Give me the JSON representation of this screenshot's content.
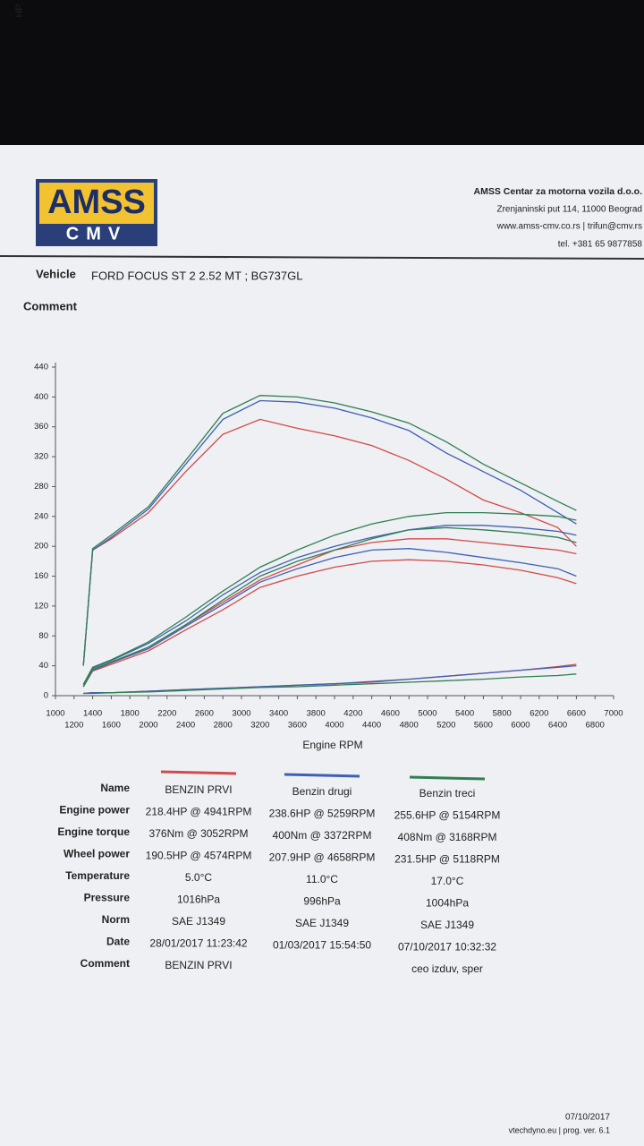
{
  "header": {
    "logo_top": "AMSS",
    "logo_bottom": "CMV",
    "company": "AMSS Centar za motorna vozila d.o.o.",
    "address": "Zrenjaninski put 114, 11000 Beograd",
    "web": "www.amss-cmv.co.rs  | trifun@cmv.rs",
    "phone": "tel. +381 65 9877858"
  },
  "vehicle": {
    "label": "Vehicle",
    "value": "FORD FOCUS ST 2 2.52 MT ; BG737GL"
  },
  "comment": {
    "label": "Comment"
  },
  "chart_data": {
    "type": "line",
    "ylabel": "HP, Nm",
    "xlabel": "Engine RPM",
    "xlim": [
      1000,
      7000
    ],
    "ylim": [
      0,
      440
    ],
    "xticks": [
      1000,
      1200,
      1400,
      1600,
      1800,
      2000,
      2200,
      2400,
      2600,
      2800,
      3000,
      3200,
      3400,
      3600,
      3800,
      4000,
      4200,
      4400,
      4600,
      4800,
      5000,
      5200,
      5400,
      5600,
      5800,
      6000,
      6200,
      6400,
      6600,
      6800,
      7000
    ],
    "yticks": [
      0,
      40,
      80,
      120,
      160,
      200,
      240,
      280,
      320,
      360,
      400,
      440
    ],
    "x": [
      1300,
      1400,
      1600,
      2000,
      2400,
      2800,
      3200,
      3600,
      4000,
      4400,
      4800,
      5200,
      5600,
      6000,
      6400,
      6600
    ],
    "series": [
      {
        "color": "#d24a4a",
        "values": [
          40,
          195,
          210,
          245,
          300,
          350,
          370,
          358,
          348,
          335,
          315,
          290,
          262,
          245,
          225,
          200
        ]
      },
      {
        "color": "#3f5fb5",
        "values": [
          40,
          195,
          212,
          250,
          310,
          370,
          395,
          393,
          385,
          372,
          355,
          325,
          300,
          275,
          245,
          230
        ]
      },
      {
        "color": "#2f7f52",
        "values": [
          40,
          197,
          215,
          253,
          315,
          378,
          402,
          400,
          392,
          380,
          365,
          340,
          310,
          285,
          260,
          248
        ]
      },
      {
        "color": "#d24a4a",
        "values": [
          15,
          35,
          45,
          65,
          95,
          125,
          155,
          175,
          195,
          205,
          210,
          210,
          205,
          200,
          195,
          190
        ]
      },
      {
        "color": "#3f5fb5",
        "values": [
          15,
          37,
          47,
          70,
          100,
          135,
          165,
          185,
          200,
          212,
          222,
          228,
          228,
          225,
          220,
          215
        ]
      },
      {
        "color": "#2f7f52",
        "values": [
          15,
          38,
          48,
          72,
          105,
          140,
          172,
          195,
          215,
          230,
          240,
          245,
          245,
          243,
          240,
          235
        ]
      },
      {
        "color": "#d24a4a",
        "values": [
          12,
          33,
          42,
          60,
          88,
          115,
          145,
          160,
          172,
          180,
          182,
          180,
          175,
          168,
          158,
          150
        ]
      },
      {
        "color": "#3f5fb5",
        "values": [
          12,
          34,
          44,
          63,
          93,
          122,
          152,
          170,
          185,
          195,
          197,
          192,
          185,
          178,
          170,
          160
        ]
      },
      {
        "color": "#2f7f52",
        "values": [
          12,
          35,
          45,
          65,
          95,
          128,
          160,
          180,
          195,
          210,
          222,
          225,
          222,
          218,
          212,
          205
        ]
      },
      {
        "color": "#d24a4a",
        "values": [
          3,
          4,
          4,
          6,
          8,
          10,
          12,
          14,
          16,
          18,
          22,
          26,
          30,
          34,
          39,
          42
        ]
      },
      {
        "color": "#3f5fb5",
        "values": [
          3,
          4,
          4,
          6,
          8,
          10,
          12,
          14,
          16,
          19,
          22,
          26,
          30,
          34,
          38,
          40
        ]
      },
      {
        "color": "#2f7f52",
        "values": [
          3,
          3,
          4,
          5,
          7,
          9,
          11,
          12,
          14,
          16,
          18,
          20,
          22,
          25,
          27,
          29
        ]
      }
    ]
  },
  "table": {
    "rows": [
      {
        "label": "Name",
        "values": [
          "BENZIN PRVI",
          "Benzin drugi",
          "Benzin treci"
        ]
      },
      {
        "label": "Engine power",
        "values": [
          "218.4HP @  4941RPM",
          "238.6HP @  5259RPM",
          "255.6HP @  5154RPM"
        ]
      },
      {
        "label": "Engine torque",
        "values": [
          "376Nm @ 3052RPM",
          "400Nm @ 3372RPM",
          "408Nm @ 3168RPM"
        ]
      },
      {
        "label": "Wheel power",
        "values": [
          "190.5HP @  4574RPM",
          "207.9HP @  4658RPM",
          "231.5HP @  5118RPM"
        ]
      },
      {
        "label": "Temperature",
        "values": [
          "5.0°C",
          "11.0°C",
          "17.0°C"
        ]
      },
      {
        "label": "Pressure",
        "values": [
          "1016hPa",
          "996hPa",
          "1004hPa"
        ]
      },
      {
        "label": "Norm",
        "values": [
          "SAE J1349",
          "SAE J1349",
          "SAE J1349"
        ]
      },
      {
        "label": "Date",
        "values": [
          "28/01/2017 11:23:42",
          "01/03/2017 15:54:50",
          "07/10/2017 10:32:32"
        ]
      },
      {
        "label": "Comment",
        "values": [
          "BENZIN PRVI",
          null,
          "ceo izduv, sper"
        ]
      }
    ]
  },
  "footer": {
    "date": "07/10/2017",
    "program": "vtechdyno.eu | prog. ver. 6.1"
  }
}
